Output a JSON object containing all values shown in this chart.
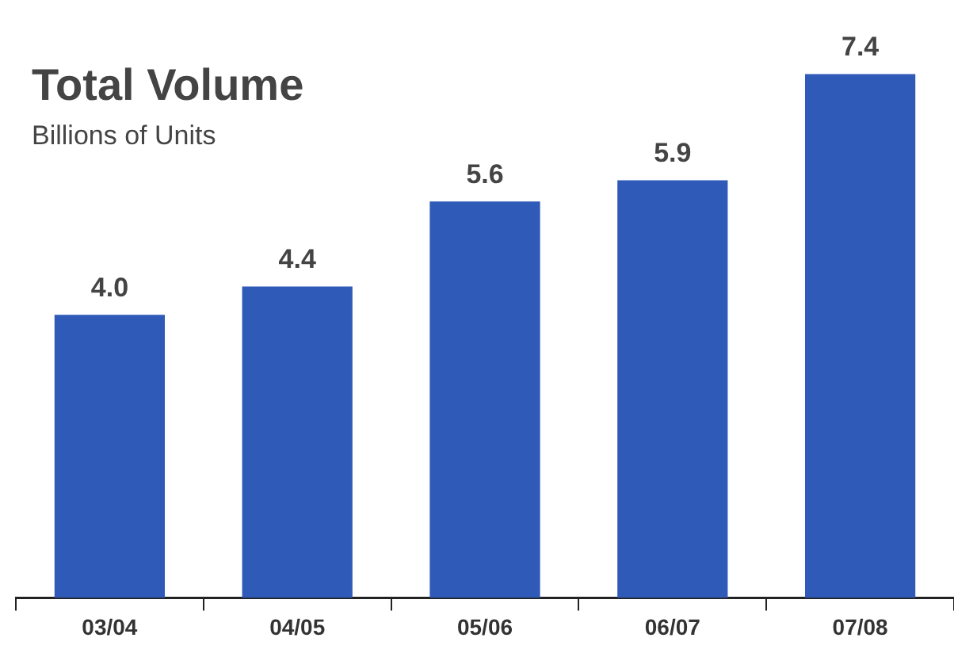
{
  "chart_data": {
    "type": "bar",
    "title": "Total Volume",
    "subtitle": "Billions of Units",
    "categories": [
      "03/04",
      "04/05",
      "05/06",
      "06/07",
      "07/08"
    ],
    "values": [
      4.0,
      4.4,
      5.6,
      5.9,
      7.4
    ],
    "value_labels": [
      "4.0",
      "4.4",
      "5.6",
      "5.9",
      "7.4"
    ],
    "color": "#2f5ab8",
    "grid": false,
    "legend": false
  }
}
